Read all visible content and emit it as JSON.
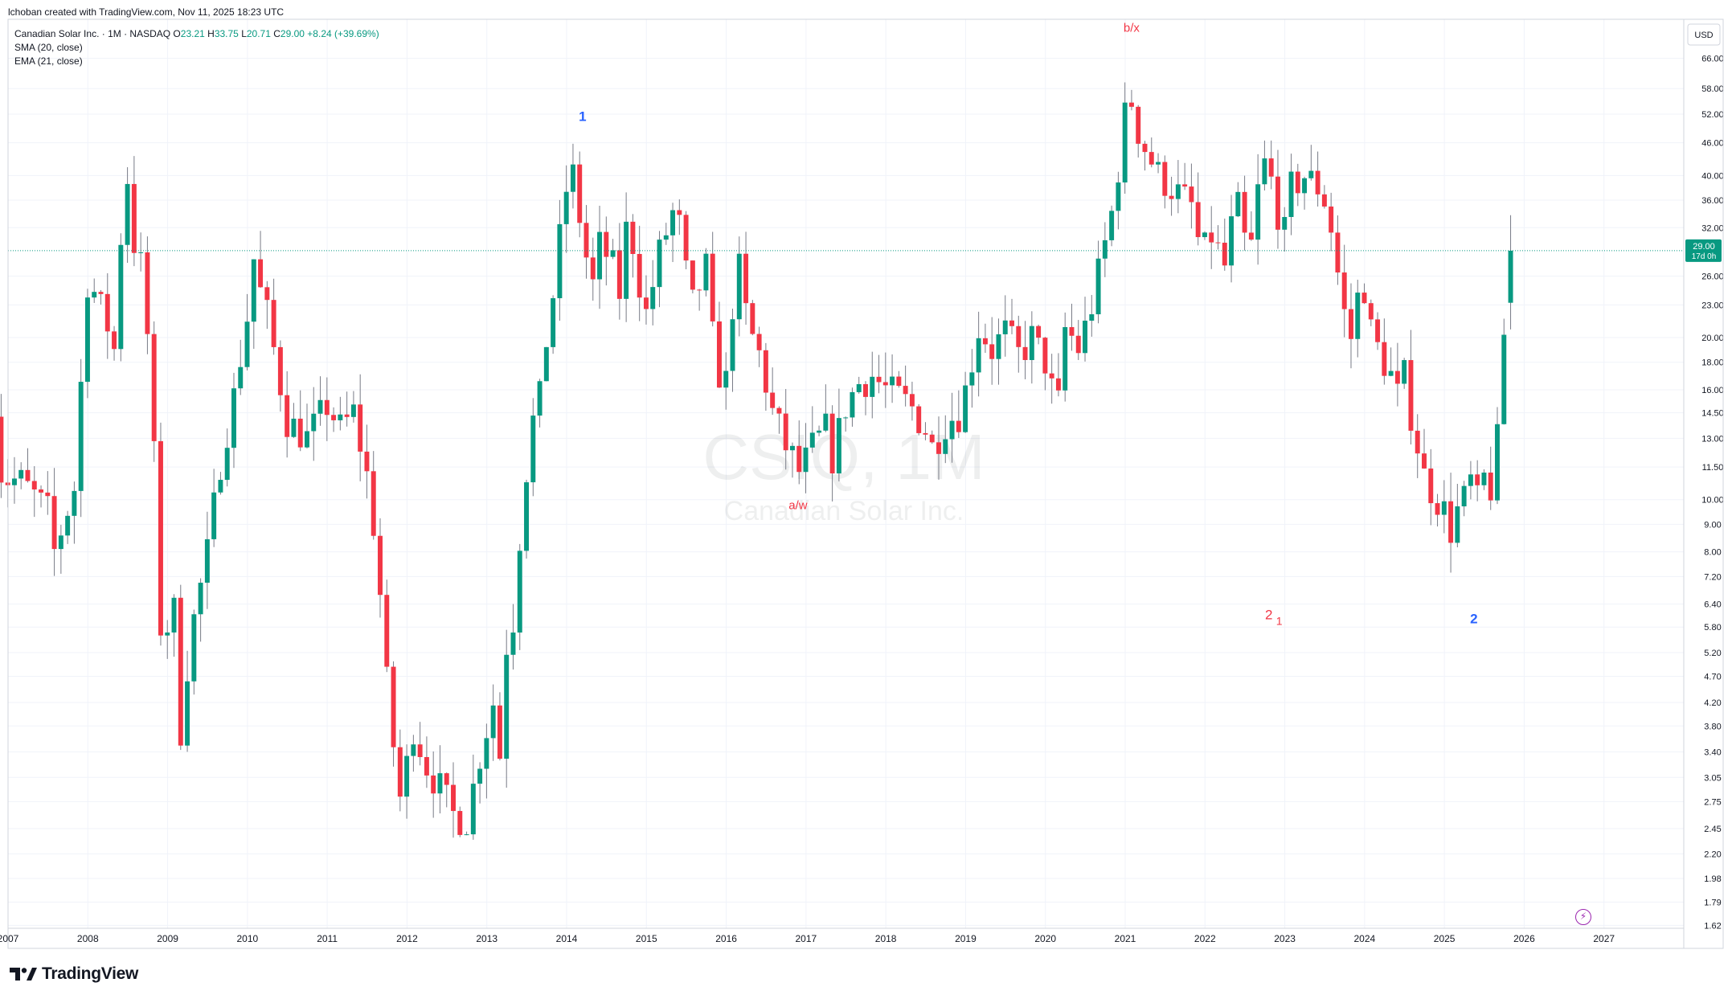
{
  "header": {
    "credit": "lchoban created with TradingView.com, Nov 11, 2025 18:23 UTC"
  },
  "legend": {
    "title": "Canadian Solar Inc. · 1M · NASDAQ",
    "o_label": "O",
    "o_value": "23.21",
    "h_label": "H",
    "h_value": "33.75",
    "l_label": "L",
    "l_value": "20.71",
    "c_label": "C",
    "c_value": "29.00",
    "change": "+8.24 (+39.69%)",
    "indicators": [
      "SMA (20, close)",
      "EMA (21, close)"
    ]
  },
  "watermark": {
    "symbol": "CSIQ, 1M",
    "name": "Canadian Solar Inc."
  },
  "footer": {
    "brand": "TradingView"
  },
  "colors": {
    "up": "#089981",
    "down": "#f23645",
    "last_price_badge": "#089981",
    "grid": "#f0f3fa",
    "wave_red": "#f23645",
    "wave_blue": "#2962ff",
    "lightning": "#9c27b0"
  },
  "icons": {
    "lightning": "lightning-icon",
    "logo": "tradingview-logo-icon"
  },
  "chart_data": {
    "type": "candlestick",
    "scale": "log",
    "currency": "USD",
    "last_price": "29.00",
    "countdown": "17d 0h",
    "y_ticks": [
      "66.00",
      "58.00",
      "52.00",
      "46.00",
      "40.00",
      "36.00",
      "32.00",
      "26.00",
      "23.00",
      "20.00",
      "18.00",
      "16.00",
      "14.50",
      "13.00",
      "11.50",
      "10.00",
      "9.00",
      "8.00",
      "7.20",
      "6.40",
      "5.80",
      "5.20",
      "4.70",
      "4.20",
      "3.80",
      "3.40",
      "3.05",
      "2.75",
      "2.45",
      "2.20",
      "1.98",
      "1.79",
      "1.62"
    ],
    "x_ticks": [
      "2007",
      "2008",
      "2009",
      "2010",
      "2011",
      "2012",
      "2013",
      "2014",
      "2015",
      "2016",
      "2017",
      "2018",
      "2019",
      "2020",
      "2021",
      "2022",
      "2023",
      "2024",
      "2025",
      "2026",
      "2027"
    ],
    "x_range": [
      2007.0,
      2028.0
    ],
    "y_range": [
      1.6,
      78.0
    ],
    "annotations": [
      {
        "text": "1",
        "x": 2014.2,
        "y": 50.5,
        "color": "blue"
      },
      {
        "text": "b/x",
        "x": 2021.08,
        "y": 74.0,
        "color": "red"
      },
      {
        "text": "a/w",
        "x": 2016.9,
        "y": 9.6,
        "color": "red"
      },
      {
        "text": "2",
        "x": 2022.8,
        "y": 6.0,
        "color": "red"
      },
      {
        "text": "1",
        "x": 2022.93,
        "y": 5.85,
        "color": "red"
      },
      {
        "text": "2",
        "x": 2025.37,
        "y": 5.9,
        "color": "blue"
      }
    ],
    "anchors": [
      [
        2006.83,
        15.5
      ],
      [
        2006.92,
        11.0
      ],
      [
        2007.17,
        10.8
      ],
      [
        2007.5,
        9.5
      ],
      [
        2007.58,
        8.0
      ],
      [
        2007.83,
        10.5
      ],
      [
        2007.92,
        17.0
      ],
      [
        2008.0,
        26.0
      ],
      [
        2008.25,
        21.0
      ],
      [
        2008.33,
        19.0
      ],
      [
        2008.42,
        32.0
      ],
      [
        2008.5,
        40.0
      ],
      [
        2008.58,
        30.0
      ],
      [
        2008.67,
        27.0
      ],
      [
        2008.75,
        20.0
      ],
      [
        2008.83,
        12.0
      ],
      [
        2008.92,
        5.5
      ],
      [
        2009.08,
        6.2
      ],
      [
        2009.17,
        3.6
      ],
      [
        2009.25,
        5.0
      ],
      [
        2009.33,
        6.0
      ],
      [
        2009.5,
        8.0
      ],
      [
        2009.67,
        12.0
      ],
      [
        2009.83,
        15.5
      ],
      [
        2010.0,
        22.0
      ],
      [
        2010.08,
        28.0
      ],
      [
        2010.17,
        24.0
      ],
      [
        2010.25,
        22.0
      ],
      [
        2010.33,
        19.0
      ],
      [
        2010.5,
        14.0
      ],
      [
        2010.75,
        13.0
      ],
      [
        2011.0,
        15.0
      ],
      [
        2011.17,
        13.5
      ],
      [
        2011.33,
        14.5
      ],
      [
        2011.5,
        11.0
      ],
      [
        2011.58,
        9.0
      ],
      [
        2011.67,
        6.5
      ],
      [
        2011.75,
        4.5
      ],
      [
        2011.83,
        3.5
      ],
      [
        2011.92,
        2.75
      ],
      [
        2012.08,
        3.8
      ],
      [
        2012.25,
        3.2
      ],
      [
        2012.42,
        2.9
      ],
      [
        2012.58,
        2.6
      ],
      [
        2012.75,
        2.55
      ],
      [
        2012.92,
        3.4
      ],
      [
        2013.08,
        4.2
      ],
      [
        2013.17,
        3.3
      ],
      [
        2013.25,
        5.5
      ],
      [
        2013.33,
        6.0
      ],
      [
        2013.42,
        8.8
      ],
      [
        2013.5,
        11.5
      ],
      [
        2013.58,
        14.0
      ],
      [
        2013.67,
        15.5
      ],
      [
        2013.75,
        20.0
      ],
      [
        2013.83,
        24.0
      ],
      [
        2013.92,
        31.0
      ],
      [
        2014.0,
        38.0
      ],
      [
        2014.08,
        40.0
      ],
      [
        2014.17,
        33.0
      ],
      [
        2014.25,
        28.0
      ],
      [
        2014.33,
        25.0
      ],
      [
        2014.42,
        30.0
      ],
      [
        2014.58,
        27.0
      ],
      [
        2014.67,
        24.0
      ],
      [
        2014.75,
        32.0
      ],
      [
        2014.83,
        30.0
      ],
      [
        2014.92,
        25.0
      ],
      [
        2015.0,
        22.0
      ],
      [
        2015.17,
        29.0
      ],
      [
        2015.33,
        34.0
      ],
      [
        2015.42,
        32.0
      ],
      [
        2015.5,
        26.0
      ],
      [
        2015.58,
        23.0
      ],
      [
        2015.75,
        27.0
      ],
      [
        2015.83,
        20.0
      ],
      [
        2015.92,
        17.0
      ],
      [
        2016.0,
        16.5
      ],
      [
        2016.08,
        23.0
      ],
      [
        2016.17,
        27.0
      ],
      [
        2016.25,
        22.0
      ],
      [
        2016.33,
        20.0
      ],
      [
        2016.42,
        18.5
      ],
      [
        2016.58,
        14.5
      ],
      [
        2016.67,
        13.5
      ],
      [
        2016.75,
        12.5
      ],
      [
        2016.83,
        12.0
      ],
      [
        2016.92,
        11.2
      ],
      [
        2017.08,
        12.5
      ],
      [
        2017.25,
        13.5
      ],
      [
        2017.33,
        12.0
      ],
      [
        2017.5,
        15.0
      ],
      [
        2017.67,
        16.5
      ],
      [
        2017.83,
        17.0
      ],
      [
        2018.0,
        16.0
      ],
      [
        2018.17,
        15.5
      ],
      [
        2018.33,
        14.8
      ],
      [
        2018.5,
        13.5
      ],
      [
        2018.58,
        12.5
      ],
      [
        2018.75,
        14.0
      ],
      [
        2018.92,
        14.5
      ],
      [
        2019.0,
        16.0
      ],
      [
        2019.17,
        21.0
      ],
      [
        2019.33,
        19.0
      ],
      [
        2019.5,
        20.5
      ],
      [
        2019.67,
        18.5
      ],
      [
        2019.83,
        20.0
      ],
      [
        2020.0,
        18.0
      ],
      [
        2020.08,
        16.0
      ],
      [
        2020.17,
        15.0
      ],
      [
        2020.25,
        21.0
      ],
      [
        2020.42,
        19.0
      ],
      [
        2020.58,
        23.0
      ],
      [
        2020.75,
        30.0
      ],
      [
        2020.83,
        34.0
      ],
      [
        2020.92,
        42.0
      ],
      [
        2021.0,
        52.0
      ],
      [
        2021.08,
        55.0
      ],
      [
        2021.17,
        48.0
      ],
      [
        2021.25,
        45.0
      ],
      [
        2021.42,
        40.0
      ],
      [
        2021.58,
        38.0
      ],
      [
        2021.75,
        36.0
      ],
      [
        2021.83,
        35.0
      ],
      [
        2021.92,
        30.0
      ],
      [
        2022.0,
        29.0
      ],
      [
        2022.08,
        31.0
      ],
      [
        2022.25,
        27.0
      ],
      [
        2022.33,
        32.0
      ],
      [
        2022.42,
        35.0
      ],
      [
        2022.5,
        30.0
      ],
      [
        2022.58,
        29.5
      ],
      [
        2022.67,
        38.0
      ],
      [
        2022.75,
        42.0
      ],
      [
        2022.83,
        39.0
      ],
      [
        2022.92,
        34.0
      ],
      [
        2023.0,
        31.0
      ],
      [
        2023.08,
        38.0
      ],
      [
        2023.25,
        40.0
      ],
      [
        2023.42,
        38.0
      ],
      [
        2023.5,
        36.0
      ],
      [
        2023.58,
        32.0
      ],
      [
        2023.67,
        26.0
      ],
      [
        2023.75,
        22.0
      ],
      [
        2023.83,
        20.0
      ],
      [
        2023.92,
        24.0
      ],
      [
        2024.0,
        25.0
      ],
      [
        2024.08,
        20.5
      ],
      [
        2024.17,
        19.0
      ],
      [
        2024.33,
        17.0
      ],
      [
        2024.42,
        15.5
      ],
      [
        2024.5,
        17.0
      ],
      [
        2024.58,
        14.5
      ],
      [
        2024.67,
        12.5
      ],
      [
        2024.75,
        11.0
      ],
      [
        2024.83,
        10.5
      ],
      [
        2024.92,
        10.0
      ],
      [
        2025.0,
        9.5
      ],
      [
        2025.08,
        8.8
      ],
      [
        2025.17,
        9.6
      ],
      [
        2025.25,
        10.0
      ],
      [
        2025.33,
        10.8
      ],
      [
        2025.42,
        9.8
      ],
      [
        2025.5,
        11.0
      ],
      [
        2025.58,
        10.5
      ],
      [
        2025.67,
        13.0
      ],
      [
        2025.75,
        20.71
      ],
      [
        2025.83,
        29.0
      ]
    ]
  }
}
